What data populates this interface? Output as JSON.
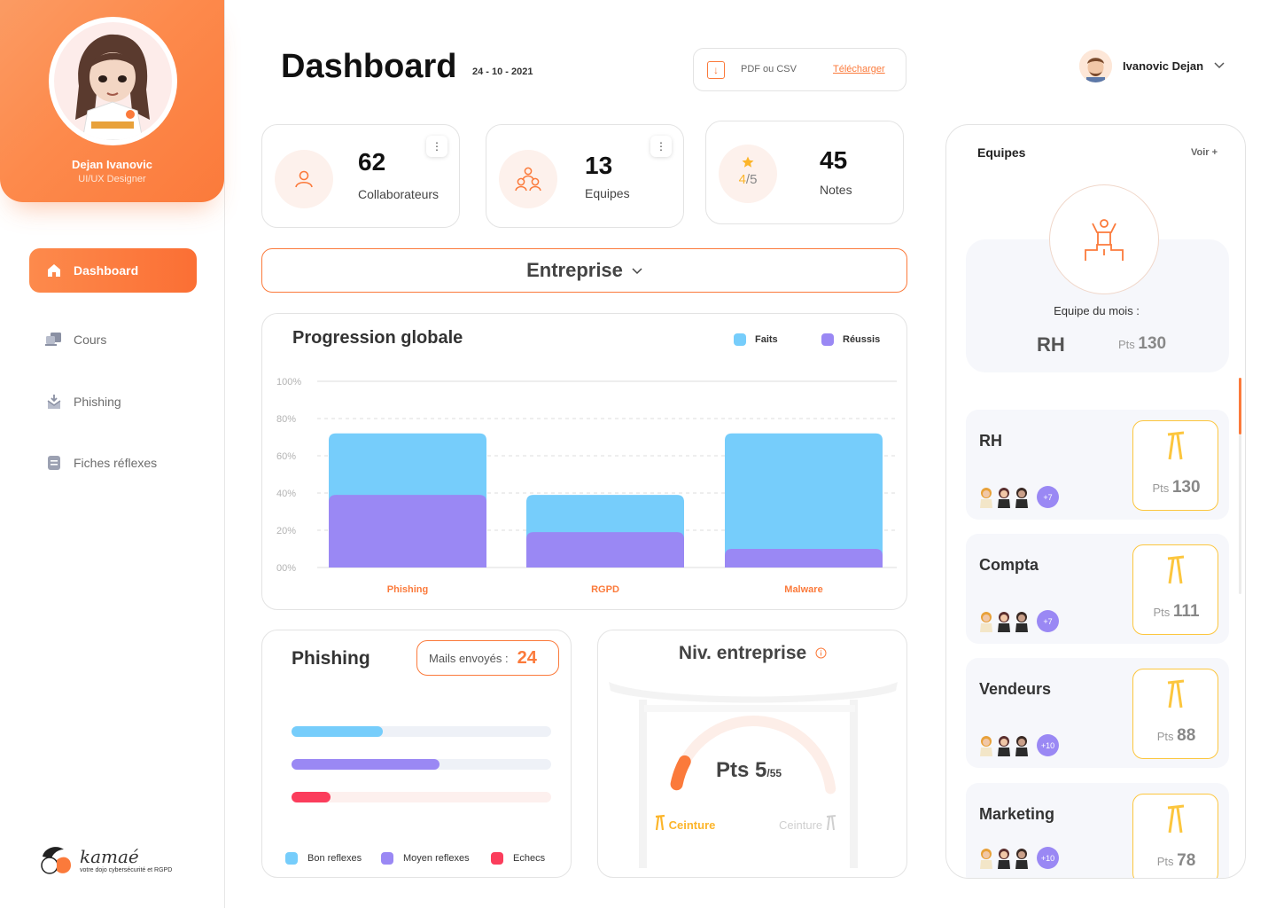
{
  "profile": {
    "name": "Dejan Ivanovic",
    "role": "UI/UX Designer"
  },
  "nav": [
    {
      "label": "Dashboard",
      "icon": "home-icon",
      "active": true
    },
    {
      "label": "Cours",
      "icon": "courses-icon",
      "active": false
    },
    {
      "label": "Phishing",
      "icon": "phishing-icon",
      "active": false
    },
    {
      "label": "Fiches réflexes",
      "icon": "document-icon",
      "active": false
    }
  ],
  "brand": {
    "name": "kamaé",
    "tagline": "votre dojo cybersécurité et RGPD"
  },
  "header": {
    "title": "Dashboard",
    "date": "24 - 10 - 2021",
    "export_label": "PDF ou CSV",
    "export_link": "Télécharger",
    "user_name": "Ivanovic Dejan"
  },
  "stats": [
    {
      "value": "62",
      "label": "Collaborateurs",
      "icon": "user-icon"
    },
    {
      "value": "13",
      "label": "Equipes",
      "icon": "team-icon"
    },
    {
      "value": "45",
      "label": "Notes",
      "icon": "star-icon",
      "rating": "4",
      "rating_max": "/5"
    }
  ],
  "selector": {
    "value": "Entreprise"
  },
  "progression": {
    "title": "Progression globale",
    "legend": [
      "Faits",
      "Réussis"
    ]
  },
  "chart_data": {
    "type": "bar",
    "categories": [
      "Phishing",
      "RGPD",
      "Malware"
    ],
    "series": [
      {
        "name": "Faits",
        "values": [
          72,
          39,
          72
        ],
        "color": "#76cdfb"
      },
      {
        "name": "Réussis",
        "values": [
          39,
          19,
          10
        ],
        "color": "#9a88f4"
      }
    ],
    "ylim": [
      0,
      100
    ],
    "yticks": [
      "00%",
      "20%",
      "40%",
      "60%",
      "80%",
      "100%"
    ],
    "legend_position": "top-right",
    "grid": true,
    "xlabel": "",
    "ylabel": ""
  },
  "phishing": {
    "title": "Phishing",
    "badge_label": "Mails envoyés :",
    "badge_value": "24",
    "bars": [
      {
        "name": "Bon reflexes",
        "fraction": 0.35,
        "color": "#76cdfb",
        "track": "#eef1f7"
      },
      {
        "name": "Moyen reflexes",
        "fraction": 0.57,
        "color": "#9a88f4",
        "track": "#eef1f7"
      },
      {
        "name": "Echecs",
        "fraction": 0.15,
        "color": "#fb3d5c",
        "track": "#fdf0ee"
      }
    ]
  },
  "niveau": {
    "title": "Niv. entreprise",
    "pts_prefix": "Pts",
    "pts_value": "5",
    "pts_max": "/55",
    "fraction": 0.09,
    "belt_left": "Ceinture",
    "belt_right": "Ceinture"
  },
  "teams": {
    "title": "Equipes",
    "more": "Voir +",
    "month_label": "Equipe du mois :",
    "month_team": "RH",
    "month_pts_prefix": "Pts",
    "month_pts": "130",
    "list": [
      {
        "name": "RH",
        "extra": "+7",
        "pts_prefix": "Pts",
        "pts": "130"
      },
      {
        "name": "Compta",
        "extra": "+7",
        "pts_prefix": "Pts",
        "pts": "111"
      },
      {
        "name": "Vendeurs",
        "extra": "+10",
        "pts_prefix": "Pts",
        "pts": "88"
      },
      {
        "name": "Marketing",
        "extra": "+10",
        "pts_prefix": "Pts",
        "pts": "78"
      }
    ]
  },
  "colors": {
    "accent": "#fb7a3b",
    "blue": "#76cdfb",
    "purple": "#9a88f4",
    "red": "#fb3d5c",
    "gold": "#fcb52a"
  }
}
